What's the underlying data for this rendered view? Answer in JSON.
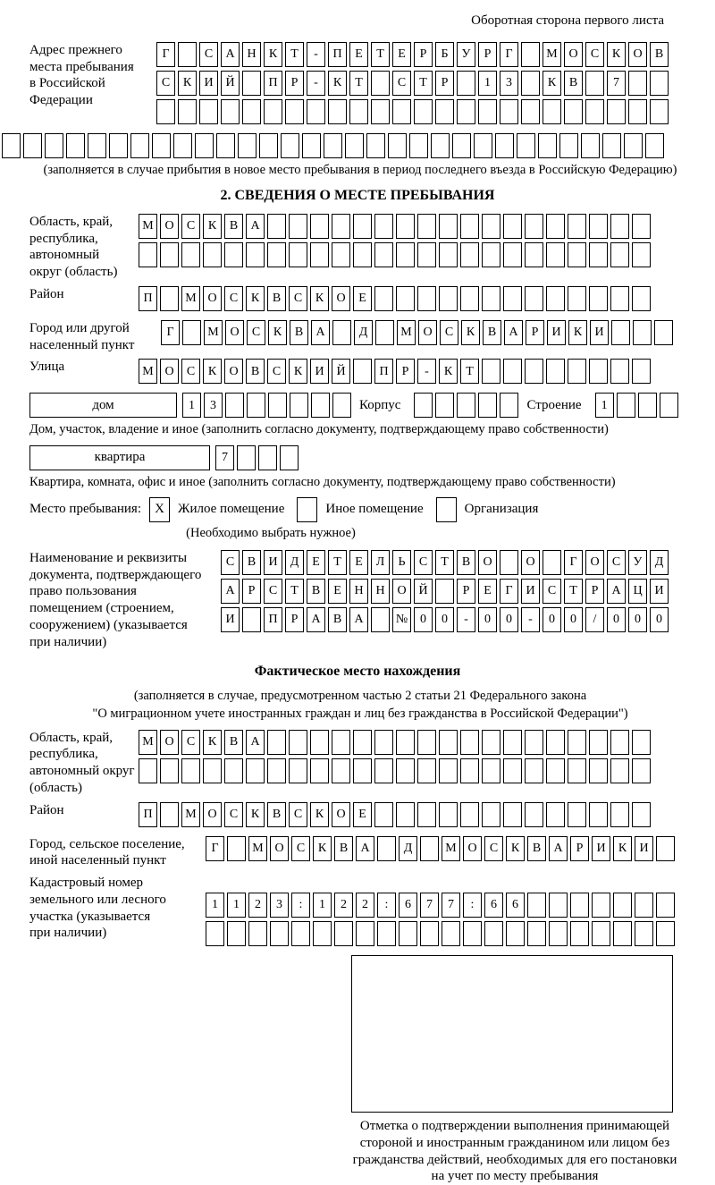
{
  "colors": {
    "ink": "#000000",
    "paper": "#ffffff"
  },
  "page_note": "Оборотная сторона первого листа",
  "prev_address": {
    "label_lines": [
      "Адрес прежнего",
      "места пребывания",
      "в Российской",
      "Федерации"
    ],
    "rows": [
      [
        "Г",
        "",
        "С",
        "А",
        "Н",
        "К",
        "Т",
        "-",
        "П",
        "Е",
        "Т",
        "Е",
        "Р",
        "Б",
        "У",
        "Р",
        "Г",
        "",
        "М",
        "О",
        "С",
        "К",
        "О",
        "В"
      ],
      [
        "С",
        "К",
        "И",
        "Й",
        "",
        "П",
        "Р",
        "-",
        "К",
        "Т",
        "",
        "С",
        "Т",
        "Р",
        "",
        "1",
        "3",
        "",
        "К",
        "В",
        "",
        "7",
        "",
        ""
      ],
      [
        "",
        "",
        "",
        "",
        "",
        "",
        "",
        "",
        "",
        "",
        "",
        "",
        "",
        "",
        "",
        "",
        "",
        "",
        "",
        "",
        "",
        "",
        "",
        ""
      ]
    ],
    "full_row": [
      "",
      "",
      "",
      "",
      "",
      "",
      "",
      "",
      "",
      "",
      "",
      "",
      "",
      "",
      "",
      "",
      "",
      "",
      "",
      "",
      "",
      "",
      "",
      "",
      "",
      "",
      "",
      "",
      "",
      "",
      ""
    ],
    "note": "(заполняется в случае прибытия в новое место пребывания в период последнего въезда в Российскую Федерацию)"
  },
  "section2": {
    "title": "2. СВЕДЕНИЯ О МЕСТЕ ПРЕБЫВАНИЯ",
    "region": {
      "label_lines": [
        "Область, край,",
        "республика,",
        "автономный",
        "округ (область)"
      ],
      "rows": [
        [
          "М",
          "О",
          "С",
          "К",
          "В",
          "А",
          "",
          "",
          "",
          "",
          "",
          "",
          "",
          "",
          "",
          "",
          "",
          "",
          "",
          "",
          "",
          "",
          "",
          ""
        ],
        [
          "",
          "",
          "",
          "",
          "",
          "",
          "",
          "",
          "",
          "",
          "",
          "",
          "",
          "",
          "",
          "",
          "",
          "",
          "",
          "",
          "",
          "",
          "",
          ""
        ]
      ]
    },
    "district": {
      "label": "Район",
      "row": [
        "П",
        "",
        "М",
        "О",
        "С",
        "К",
        "В",
        "С",
        "К",
        "О",
        "Е",
        "",
        "",
        "",
        "",
        "",
        "",
        "",
        "",
        "",
        "",
        "",
        "",
        ""
      ]
    },
    "city": {
      "label_lines": [
        "Город или другой",
        "населенный пункт"
      ],
      "row": [
        "Г",
        "",
        "М",
        "О",
        "С",
        "К",
        "В",
        "А",
        "",
        "Д",
        "",
        "М",
        "О",
        "С",
        "К",
        "В",
        "А",
        "Р",
        "И",
        "К",
        "И",
        "",
        "",
        ""
      ]
    },
    "street": {
      "label": "Улица",
      "row": [
        "М",
        "О",
        "С",
        "К",
        "О",
        "В",
        "С",
        "К",
        "И",
        "Й",
        "",
        "П",
        "Р",
        "-",
        "К",
        "Т",
        "",
        "",
        "",
        "",
        "",
        "",
        "",
        ""
      ]
    },
    "house": {
      "box_label": "дом",
      "cells": [
        "1",
        "3",
        "",
        "",
        "",
        "",
        "",
        ""
      ],
      "korpus_label": "Корпус",
      "korpus_cells": [
        "",
        "",
        "",
        "",
        ""
      ],
      "stroenie_label": "Строение",
      "stroenie_cells": [
        "1",
        "",
        "",
        ""
      ]
    },
    "house_note": "Дом, участок, владение и иное (заполнить согласно документу, подтверждающему право собственности)",
    "apartment": {
      "box_label": "квартира",
      "cells": [
        "7",
        "",
        "",
        ""
      ]
    },
    "apartment_note": "Квартира, комната, офис и иное (заполнить согласно документу, подтверждающему право собственности)",
    "stay": {
      "label": "Место пребывания:",
      "options": [
        {
          "label": "Жилое помещение",
          "mark": "X"
        },
        {
          "label": "Иное помещение",
          "mark": ""
        },
        {
          "label": "Организация",
          "mark": ""
        }
      ],
      "note": "(Необходимо выбрать нужное)"
    },
    "document": {
      "label_lines": [
        "Наименование и реквизиты",
        "документа, подтверждающего",
        "право пользования",
        "помещением (строением,",
        "сооружением) (указывается",
        "при наличии)"
      ],
      "rows": [
        [
          "С",
          "В",
          "И",
          "Д",
          "Е",
          "Т",
          "Е",
          "Л",
          "Ь",
          "С",
          "Т",
          "В",
          "О",
          "",
          "О",
          "",
          "Г",
          "О",
          "С",
          "У",
          "Д"
        ],
        [
          "А",
          "Р",
          "С",
          "Т",
          "В",
          "Е",
          "Н",
          "Н",
          "О",
          "Й",
          "",
          "Р",
          "Е",
          "Г",
          "И",
          "С",
          "Т",
          "Р",
          "А",
          "Ц",
          "И"
        ],
        [
          "И",
          "",
          "П",
          "Р",
          "А",
          "В",
          "А",
          "",
          "№",
          "0",
          "0",
          "-",
          "0",
          "0",
          "-",
          "0",
          "0",
          "/",
          "0",
          "0",
          "0"
        ]
      ]
    }
  },
  "actual_location": {
    "title": "Фактическое место нахождения",
    "note_lines": [
      "(заполняется в случае, предусмотренном частью 2 статьи 21 Федерального закона",
      "\"О миграционном учете иностранных граждан и лиц без гражданства в Российской Федерации\")"
    ],
    "region": {
      "label_lines": [
        "Область, край,",
        "республика,",
        "автономный округ",
        "(область)"
      ],
      "rows": [
        [
          "М",
          "О",
          "С",
          "К",
          "В",
          "А",
          "",
          "",
          "",
          "",
          "",
          "",
          "",
          "",
          "",
          "",
          "",
          "",
          "",
          "",
          "",
          "",
          "",
          ""
        ],
        [
          "",
          "",
          "",
          "",
          "",
          "",
          "",
          "",
          "",
          "",
          "",
          "",
          "",
          "",
          "",
          "",
          "",
          "",
          "",
          "",
          "",
          "",
          "",
          ""
        ]
      ]
    },
    "district": {
      "label": "Район",
      "row": [
        "П",
        "",
        "М",
        "О",
        "С",
        "К",
        "В",
        "С",
        "К",
        "О",
        "Е",
        "",
        "",
        "",
        "",
        "",
        "",
        "",
        "",
        "",
        "",
        "",
        "",
        ""
      ]
    },
    "city": {
      "label_lines": [
        "Город, сельское поселение,",
        "иной населенный пункт"
      ],
      "row": [
        "Г",
        "",
        "М",
        "О",
        "С",
        "К",
        "В",
        "А",
        "",
        "Д",
        "",
        "М",
        "О",
        "С",
        "К",
        "В",
        "А",
        "Р",
        "И",
        "К",
        "И",
        ""
      ]
    },
    "cadastre": {
      "label_lines": [
        "Кадастровый номер",
        "земельного или лесного",
        "участка (указывается",
        "при наличии)"
      ],
      "rows": [
        [
          "1",
          "1",
          "2",
          "3",
          ":",
          "1",
          "2",
          "2",
          ":",
          "6",
          "7",
          "7",
          ":",
          "6",
          "6",
          "",
          "",
          "",
          "",
          "",
          "",
          ""
        ],
        [
          "",
          "",
          "",
          "",
          "",
          "",
          "",
          "",
          "",
          "",
          "",
          "",
          "",
          "",
          "",
          "",
          "",
          "",
          "",
          "",
          "",
          ""
        ]
      ]
    },
    "stamp_note_lines": [
      "Отметка о подтверждении выполнения принимающей",
      "стороной и иностранным гражданином или лицом без",
      "гражданства действий, необходимых для его постановки",
      "на учет по месту пребывания"
    ]
  }
}
